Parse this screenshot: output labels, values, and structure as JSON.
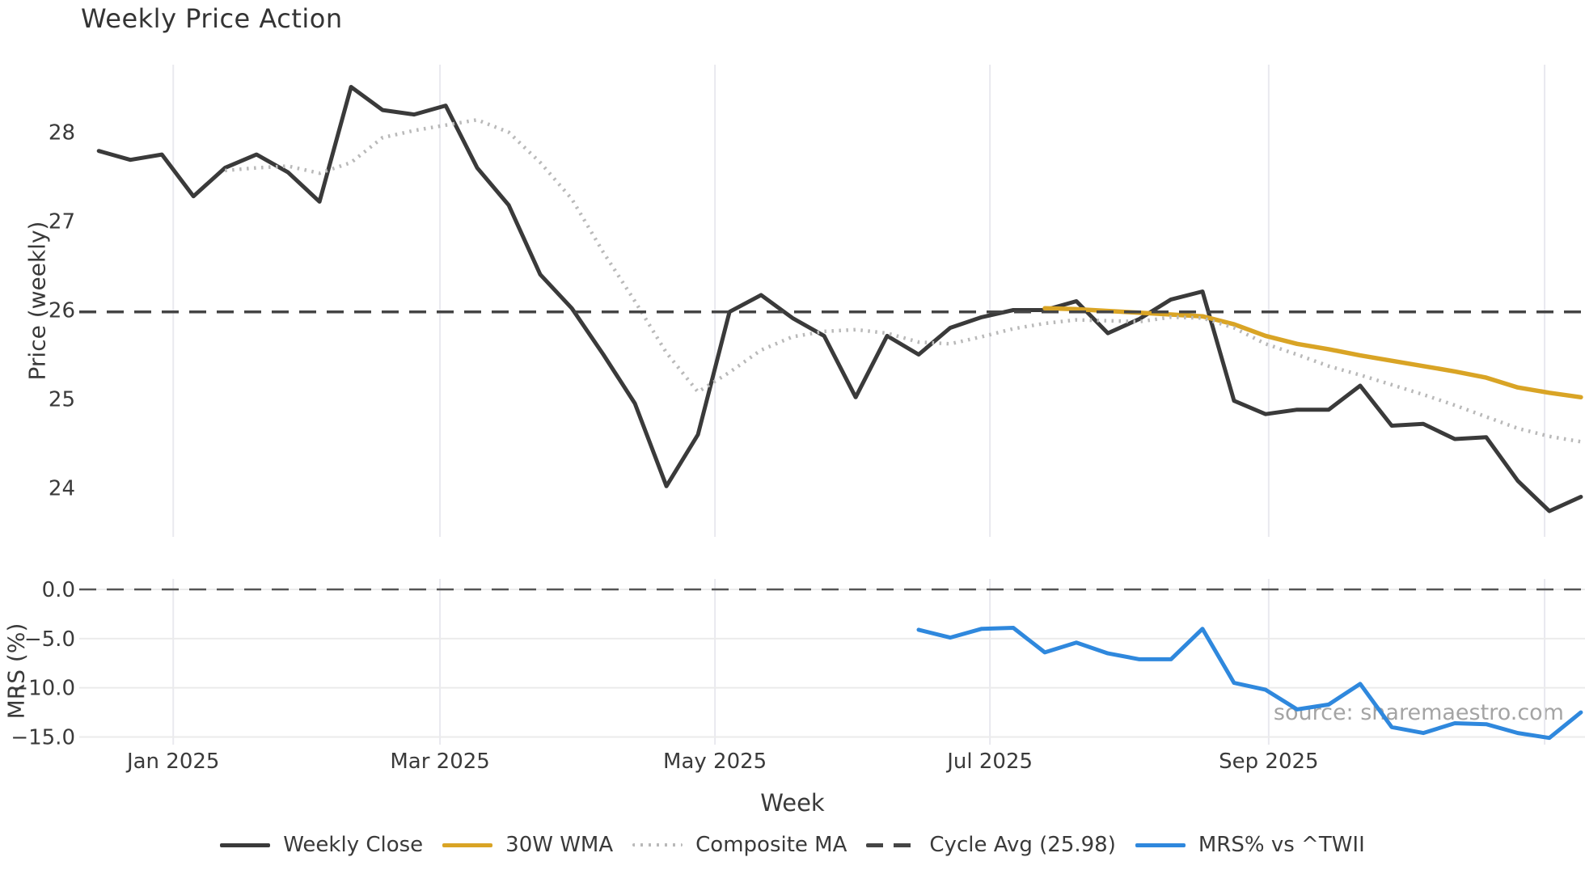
{
  "title": "Weekly Price Action",
  "source_note": "source: sharemaestro.com",
  "xlabel": "Week",
  "legend": {
    "items": [
      {
        "label": "Weekly Close",
        "style": "solid",
        "color": "#3a3a3a"
      },
      {
        "label": "30W WMA",
        "style": "solid",
        "color": "#d9a425"
      },
      {
        "label": "Composite MA",
        "style": "dotted",
        "color": "#b9b9b9"
      },
      {
        "label": "Cycle Avg (25.98)",
        "style": "dashed",
        "color": "#454545"
      },
      {
        "label": "MRS% vs ^TWII",
        "style": "solid",
        "color": "#2f88dd"
      }
    ]
  },
  "chart_data": [
    {
      "type": "line",
      "panel": "price",
      "title": "Weekly Price Action",
      "xlabel": "Week",
      "ylabel": "Price (weekly)",
      "x_unit": "week_index",
      "xlim": [
        -0.62,
        47.13
      ],
      "ylim": [
        23.45,
        28.76
      ],
      "grid": "vertical",
      "legend_position": "bottom-center",
      "yticks": [
        {
          "v": 28,
          "label": "28"
        },
        {
          "v": 27,
          "label": "27"
        },
        {
          "v": 26,
          "label": "26"
        },
        {
          "v": 25,
          "label": "25"
        },
        {
          "v": 24,
          "label": "24"
        }
      ],
      "xticks": [
        {
          "w": 2.36,
          "label": "Jan 2025"
        },
        {
          "w": 10.82,
          "label": "Mar 2025"
        },
        {
          "w": 19.54,
          "label": "May 2025"
        },
        {
          "w": 28.26,
          "label": "Jul 2025"
        },
        {
          "w": 37.1,
          "label": "Sep 2025"
        },
        {
          "w": 45.85,
          "label": ""
        }
      ],
      "series": [
        {
          "name": "Weekly Close",
          "color": "#3a3a3a",
          "style": "solid",
          "width": 5,
          "x_start": 0,
          "values": [
            27.79,
            27.69,
            27.75,
            27.28,
            27.6,
            27.75,
            27.55,
            27.22,
            28.51,
            28.25,
            28.2,
            28.3,
            27.6,
            27.18,
            26.4,
            26.02,
            25.5,
            24.95,
            24.02,
            24.6,
            25.98,
            26.17,
            25.91,
            25.71,
            25.02,
            25.71,
            25.5,
            25.8,
            25.92,
            26.0,
            26.0,
            26.1,
            25.74,
            25.9,
            26.12,
            26.21,
            24.98,
            24.83,
            24.88,
            24.88,
            25.15,
            24.7,
            24.72,
            24.55,
            24.57,
            24.08,
            23.74,
            23.9
          ]
        },
        {
          "name": "30W WMA",
          "color": "#d9a425",
          "style": "solid",
          "width": 5.5,
          "x_start": 30,
          "values": [
            26.02,
            26.01,
            25.99,
            25.97,
            25.95,
            25.93,
            25.84,
            25.71,
            25.62,
            25.56,
            25.49,
            25.43,
            25.37,
            25.31,
            25.24,
            25.13,
            25.07,
            25.02
          ]
        },
        {
          "name": "Composite MA",
          "color": "#b9b9b9",
          "style": "dotted",
          "width": 4.5,
          "x_start": 4,
          "values": [
            27.57,
            27.6,
            27.62,
            27.54,
            27.66,
            27.94,
            28.02,
            28.08,
            28.14,
            28.0,
            27.66,
            27.25,
            26.65,
            26.1,
            25.52,
            25.08,
            25.3,
            25.55,
            25.7,
            25.76,
            25.78,
            25.74,
            25.64,
            25.62,
            25.7,
            25.79,
            25.85,
            25.89,
            25.88,
            25.87,
            25.92,
            25.91,
            25.8,
            25.62,
            25.5,
            25.37,
            25.27,
            25.16,
            25.05,
            24.93,
            24.8,
            24.67,
            24.58,
            24.52
          ]
        },
        {
          "name": "Cycle Avg (25.98)",
          "kind": "hline",
          "color": "#454545",
          "style": "dashed",
          "width": 3.5,
          "value": 25.98
        }
      ]
    },
    {
      "type": "line",
      "panel": "mrs",
      "ylabel": "MRS (%)",
      "x_unit": "week_index",
      "xlim": [
        -0.62,
        47.13
      ],
      "ylim": [
        -15.78,
        1.07
      ],
      "grid": "both",
      "yticks": [
        {
          "v": 0,
          "label": "0.0"
        },
        {
          "v": -5,
          "label": "−5.0"
        },
        {
          "v": -10,
          "label": "−10.0"
        },
        {
          "v": -15,
          "label": "−15.0"
        }
      ],
      "series": [
        {
          "name": "MRS% vs ^TWII",
          "color": "#2f88dd",
          "style": "solid",
          "width": 5,
          "x_start": 26,
          "values": [
            -4.1,
            -4.9,
            -4.0,
            -3.9,
            -6.4,
            -5.4,
            -6.5,
            -7.1,
            -7.1,
            -4.0,
            -9.5,
            -10.2,
            -12.2,
            -11.7,
            -9.6,
            -14.0,
            -14.6,
            -13.6,
            -13.7,
            -14.6,
            -15.1,
            -12.5
          ]
        },
        {
          "name": "Zero Line",
          "kind": "hline",
          "color": "#555555",
          "style": "dashed",
          "width": 2.5,
          "value": 0
        }
      ]
    }
  ]
}
